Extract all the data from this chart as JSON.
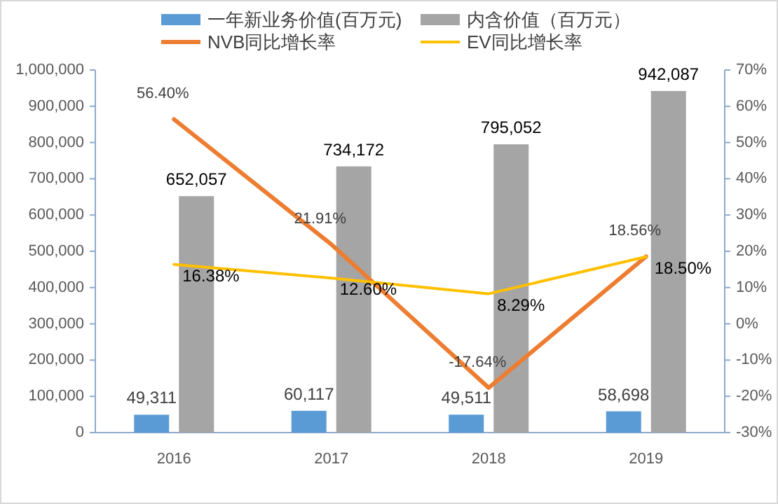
{
  "chart_data": {
    "type": "bar",
    "categories": [
      "2016",
      "2017",
      "2018",
      "2019"
    ],
    "series": [
      {
        "name": "一年新业务价值(百万元)",
        "color": "#5b9bd5",
        "values": [
          49311,
          60117,
          49511,
          58698
        ],
        "value_labels": [
          "49,311",
          "60,117",
          "49,511",
          "58,698"
        ]
      },
      {
        "name": "内含价值（百万元）",
        "color": "#a5a5a5",
        "values": [
          652057,
          734172,
          795052,
          942087
        ],
        "value_labels": [
          "652,057",
          "734,172",
          "795,052",
          "942,087"
        ]
      },
      {
        "name": "NVB同比增长率",
        "type": "line",
        "axis": "y2",
        "color": "#ed7d31",
        "values": [
          56.4,
          21.91,
          -17.64,
          18.56
        ],
        "value_labels": [
          "56.40%",
          "21.91%",
          "-17.64%",
          "18.56%"
        ]
      },
      {
        "name": "EV同比增长率",
        "type": "line",
        "axis": "y2",
        "color": "#ffc000",
        "values": [
          16.38,
          12.6,
          8.29,
          18.5
        ],
        "value_labels": [
          "16.38%",
          "12.60%",
          "8.29%",
          "18.50%"
        ]
      }
    ],
    "ylim": [
      0,
      1000000
    ],
    "yticks": [
      0,
      {
        "value": 100000,
        "label": "100,000"
      },
      {
        "value": 200000,
        "label": "200,000"
      },
      {
        "value": 300000,
        "label": "300,000"
      },
      {
        "value": 400000,
        "label": "400,000"
      },
      {
        "value": 500000,
        "label": "500,000"
      },
      {
        "value": 600000,
        "label": "600,000"
      },
      {
        "value": 700000,
        "label": "700,000"
      },
      {
        "value": 800000,
        "label": "800,000"
      },
      {
        "value": 900000,
        "label": "900,000"
      },
      {
        "value": 1000000,
        "label": "1,000,000"
      }
    ],
    "y2lim": [
      -30,
      70
    ],
    "y2ticks": [
      {
        "value": -30,
        "label": "-30%"
      },
      {
        "value": -20,
        "label": "-20%"
      },
      {
        "value": -10,
        "label": "-10%"
      },
      {
        "value": 0,
        "label": "0%"
      },
      {
        "value": 10,
        "label": "10%"
      },
      {
        "value": 20,
        "label": "20%"
      },
      {
        "value": 30,
        "label": "30%"
      },
      {
        "value": 40,
        "label": "40%"
      },
      {
        "value": 50,
        "label": "50%"
      },
      {
        "value": 60,
        "label": "60%"
      },
      {
        "value": 70,
        "label": "70%"
      }
    ],
    "legend": "top",
    "grid": false
  }
}
